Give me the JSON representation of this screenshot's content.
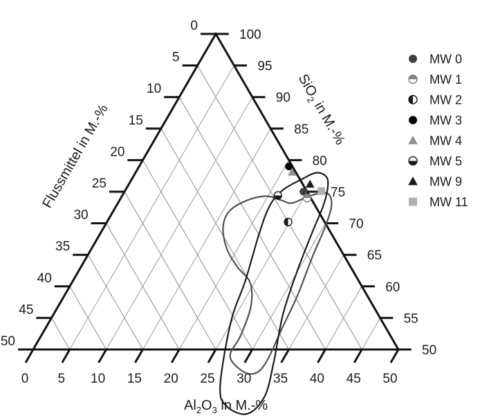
{
  "chart_data": {
    "type": "ternary",
    "axes": {
      "bottom": {
        "label": "Al2O3 in M.-%",
        "label_main": "Al",
        "label_sub1": "2",
        "label_mid": "O",
        "label_sub2": "3",
        "label_tail": " in M.-%",
        "ticks": [
          "0",
          "5",
          "10",
          "15",
          "20",
          "25",
          "30",
          "35",
          "40",
          "45",
          "50"
        ]
      },
      "left": {
        "label": "Flussmittel in M.-%",
        "ticks": [
          "0",
          "5",
          "10",
          "15",
          "20",
          "25",
          "30",
          "35",
          "40",
          "45",
          "50"
        ]
      },
      "right": {
        "label": "SiO2 in M.-%",
        "label_main": "SiO",
        "label_sub": "2",
        "label_tail": " in M.-%",
        "ticks": [
          "100",
          "95",
          "90",
          "85",
          "80",
          "75",
          "70",
          "65",
          "60",
          "55",
          "50"
        ]
      }
    },
    "grid": true,
    "legend_position": "right",
    "series": [
      {
        "name": "MW 0",
        "marker": "circle",
        "color": "#404040",
        "al2o3": 24.5,
        "fluss": 0.5
      },
      {
        "name": "MW 1",
        "marker": "half-top",
        "color": "#808080",
        "al2o3": 25.5,
        "fluss": 0.5
      },
      {
        "name": "MW 2",
        "marker": "half-left",
        "color": "#1a1a1a",
        "al2o3": 24.8,
        "fluss": 5.0
      },
      {
        "name": "MW 3",
        "marker": "circle",
        "color": "#000000",
        "al2o3": 20.5,
        "fluss": 0.5
      },
      {
        "name": "MW 4",
        "marker": "triangle",
        "color": "#909090",
        "al2o3": 21.4,
        "fluss": 0.5
      },
      {
        "name": "MW 5",
        "marker": "half-bottom",
        "color": "#1a1a1a",
        "al2o3": 21.3,
        "fluss": 4.3
      },
      {
        "name": "MW 9",
        "marker": "triangle",
        "color": "#1a1a1a",
        "al2o3": 24.8,
        "fluss": -1.0
      },
      {
        "name": "MW 11",
        "marker": "square",
        "color": "#b0b0b0",
        "al2o3": 26.9,
        "fluss": -2.0
      }
    ],
    "regions": [
      {
        "name": "field-outer",
        "stroke": "#505050",
        "points": [
          [
            23.8,
            3.0
          ],
          [
            25.4,
            0.4
          ],
          [
            26.4,
            -1.0
          ],
          [
            27.3,
            -2.2
          ],
          [
            28.5,
            -2.8
          ],
          [
            29.6,
            -2.0
          ],
          [
            30.3,
            0.5
          ],
          [
            30.9,
            4.5
          ],
          [
            31.9,
            9.5
          ],
          [
            32.4,
            14.3
          ],
          [
            32.9,
            18.8
          ],
          [
            32.4,
            21.3
          ],
          [
            30.5,
            23.0
          ],
          [
            27.5,
            23.6
          ],
          [
            27.3,
            20.5
          ],
          [
            26.4,
            16.8
          ],
          [
            24.4,
            15.0
          ],
          [
            21.5,
            15.5
          ],
          [
            18.5,
            15.5
          ],
          [
            16.3,
            14.3
          ],
          [
            15.9,
            12.2
          ],
          [
            17.4,
            9.0
          ],
          [
            19.7,
            6.0
          ],
          [
            22.0,
            4.3
          ],
          [
            23.8,
            3.0
          ]
        ]
      },
      {
        "name": "field-inner",
        "stroke": "#1a1a1a",
        "points": [
          [
            21.5,
            3.3
          ],
          [
            23.3,
            -0.3
          ],
          [
            24.8,
            -2.8
          ],
          [
            26.4,
            -3.8
          ],
          [
            27.4,
            -3.3
          ],
          [
            28.3,
            -1.2
          ],
          [
            28.9,
            2.3
          ],
          [
            29.9,
            7.5
          ],
          [
            31.4,
            13.0
          ],
          [
            33.9,
            18.0
          ],
          [
            35.4,
            22.0
          ],
          [
            34.4,
            25.8
          ],
          [
            31.0,
            28.0
          ],
          [
            28.5,
            27.3
          ],
          [
            24.9,
            20.8
          ],
          [
            23.6,
            15.5
          ],
          [
            21.8,
            10.0
          ],
          [
            21.0,
            6.3
          ],
          [
            21.5,
            3.3
          ]
        ]
      }
    ]
  }
}
